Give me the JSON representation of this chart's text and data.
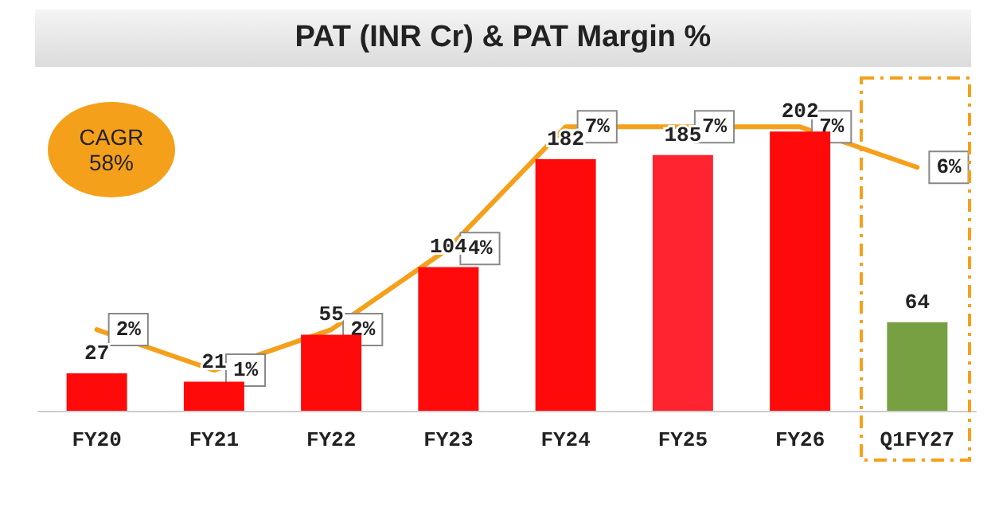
{
  "chart_data": {
    "type": "bar",
    "title": "PAT (INR Cr) & PAT Margin %",
    "categories": [
      "FY20",
      "FY21",
      "FY22",
      "FY23",
      "FY24",
      "FY25",
      "FY26",
      "Q1FY27"
    ],
    "series": [
      {
        "colors": [
          "#ff0a0a",
          "#ff0a0a",
          "#ff0a0a",
          "#ff0a0a",
          "#ff0a0a",
          "#ff2430",
          "#ff0a0a",
          "#77a043"
        ],
        "values": [
          27,
          21,
          55,
          104,
          182,
          185,
          202,
          64
        ]
      },
      {
        "type": "line",
        "axis": "y2",
        "color": "#f5a01a",
        "values": [
          2,
          1,
          2,
          4,
          7,
          7,
          7,
          6
        ],
        "value_labels": [
          "2%",
          "1%",
          "2%",
          "4%",
          "7%",
          "7%",
          "7%",
          "6%"
        ]
      }
    ],
    "data_labels": true,
    "tick_labels": "x",
    "grid": false,
    "marker": "none",
    "annotations": [
      "CAGR 58%"
    ]
  }
}
